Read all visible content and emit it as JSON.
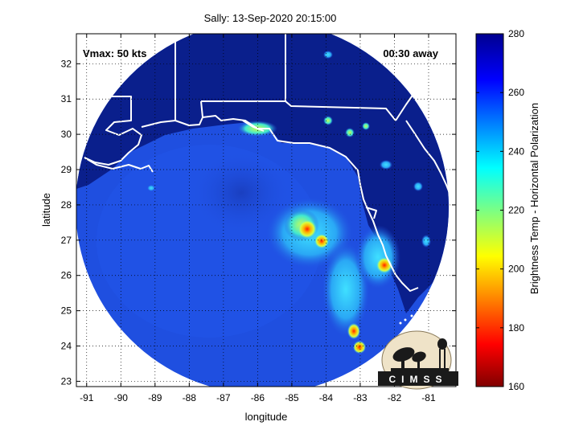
{
  "title": "Sally: 13-Sep-2020 20:15:00",
  "annotations": {
    "vmax": "Vmax: 50 kts",
    "time_away": "00:30 away"
  },
  "axes": {
    "xlabel": "longitude",
    "ylabel": "latitude",
    "x_ticks": [
      "-91",
      "-90",
      "-89",
      "-88",
      "-87",
      "-86",
      "-85",
      "-84",
      "-83",
      "-82",
      "-81"
    ],
    "y_ticks": [
      "32",
      "31",
      "30",
      "29",
      "28",
      "27",
      "26",
      "25",
      "24",
      "23"
    ],
    "x_tick_values": [
      -91,
      -90,
      -89,
      -88,
      -87,
      -86,
      -85,
      -84,
      -83,
      -82,
      -81
    ],
    "y_tick_values": [
      32,
      31,
      30,
      29,
      28,
      27,
      26,
      25,
      24,
      23
    ],
    "xlim": [
      -91.3,
      -80.2
    ],
    "ylim": [
      22.85,
      32.85
    ],
    "grid": true
  },
  "colorbar": {
    "label": "Brightness Temp - Horizontal Polarization",
    "ticks": [
      "280",
      "260",
      "240",
      "220",
      "200",
      "180",
      "160"
    ],
    "tick_values": [
      280,
      260,
      240,
      220,
      200,
      180,
      160
    ],
    "range": [
      160,
      280
    ],
    "colormap": "jet"
  },
  "colors": {
    "land_dark": "#0a1f8c",
    "ocean_blue": "#1f4fe0",
    "coastline": "#ffffff"
  },
  "logo": {
    "text": "CIMSS"
  }
}
